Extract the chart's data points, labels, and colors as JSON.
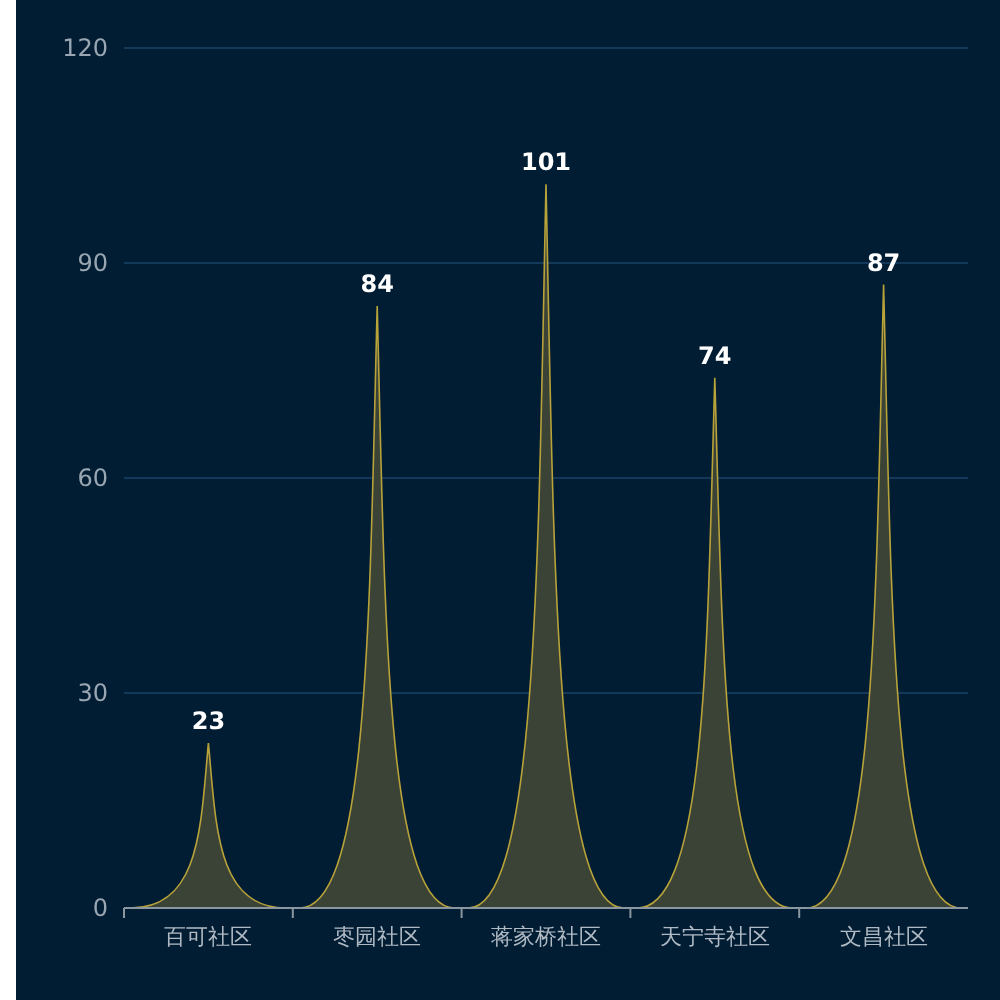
{
  "chart_data": {
    "type": "bar",
    "categories": [
      "百可社区",
      "枣园社区",
      "蒋家桥社区",
      "天宁寺社区",
      "文昌社区"
    ],
    "values": [
      23,
      84,
      101,
      74,
      87
    ],
    "color": "#3a4335",
    "ylim": [
      0,
      120
    ],
    "yticks": [
      0,
      30,
      60,
      90,
      120
    ],
    "grid": "y",
    "data_labels": true
  }
}
